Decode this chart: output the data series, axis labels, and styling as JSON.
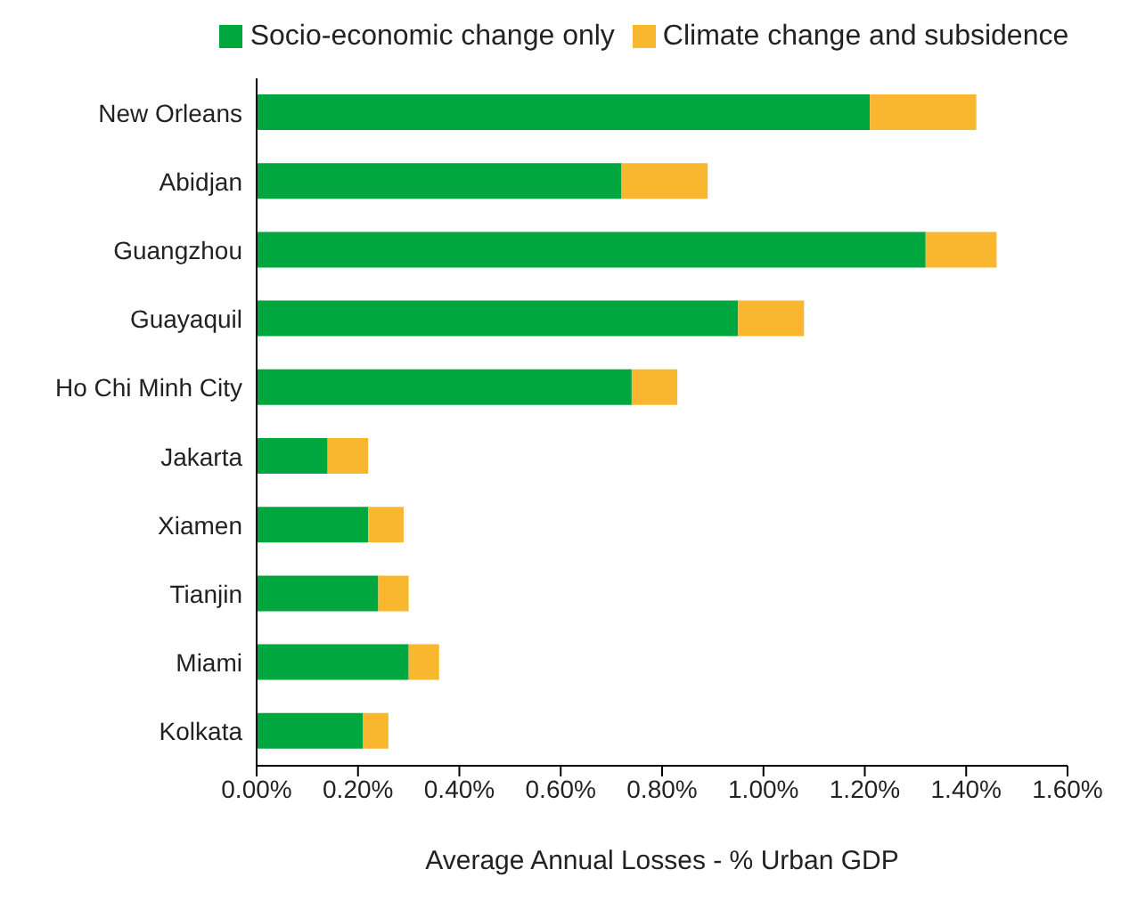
{
  "chart_data": {
    "type": "bar",
    "orientation": "horizontal",
    "stacked": true,
    "xlabel": "Average Annual Losses - % Urban GDP",
    "categories": [
      "New Orleans",
      "Abidjan",
      "Guangzhou",
      "Guayaquil",
      "Ho Chi Minh City",
      "Jakarta",
      "Xiamen",
      "Tianjin",
      "Miami",
      "Kolkata"
    ],
    "series": [
      {
        "name": "Socio-economic change only",
        "color": "#00a63e",
        "values": [
          1.21,
          0.72,
          1.32,
          0.95,
          0.74,
          0.14,
          0.22,
          0.24,
          0.3,
          0.21
        ]
      },
      {
        "name": "Climate change and subsidence",
        "color": "#f8b72e",
        "values": [
          0.21,
          0.17,
          0.14,
          0.13,
          0.09,
          0.08,
          0.07,
          0.06,
          0.06,
          0.05
        ]
      }
    ],
    "xlim": [
      0,
      1.6
    ],
    "xticks": [
      {
        "value": 0,
        "label": "0.00%"
      },
      {
        "value": 0.2,
        "label": "0.20%"
      },
      {
        "value": 0.4,
        "label": "0.40%"
      },
      {
        "value": 0.6,
        "label": "0.60%"
      },
      {
        "value": 0.8,
        "label": "0.80%"
      },
      {
        "value": 1.0,
        "label": "1.00%"
      },
      {
        "value": 1.2,
        "label": "1.20%"
      },
      {
        "value": 1.4,
        "label": "1.40%"
      },
      {
        "value": 1.6,
        "label": "1.60%"
      }
    ],
    "legend": "top",
    "grid": false
  }
}
